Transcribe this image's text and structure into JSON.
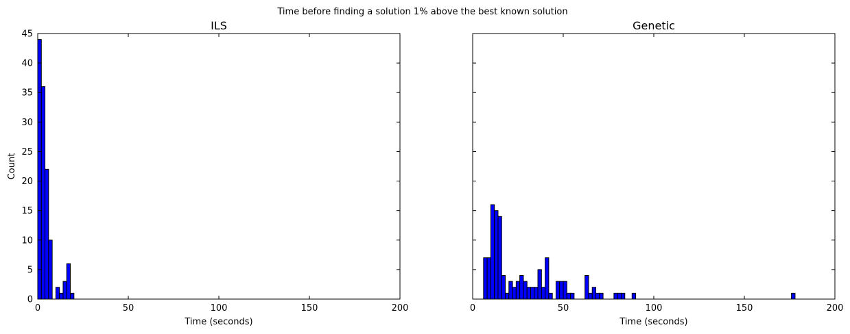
{
  "figure": {
    "suptitle": "Time before finding a solution 1% above the best known solution"
  },
  "chart_data": [
    {
      "type": "bar",
      "title": "ILS",
      "xlabel": "Time (seconds)",
      "ylabel": "Count",
      "xlim": [
        0,
        200
      ],
      "ylim": [
        0,
        45
      ],
      "xticks": [
        0,
        50,
        100,
        150,
        200
      ],
      "yticks": [
        0,
        5,
        10,
        15,
        20,
        25,
        30,
        35,
        40,
        45
      ],
      "bin_width": 2,
      "bin_start": 0,
      "values": [
        44,
        36,
        22,
        10,
        0,
        2,
        1,
        3,
        6,
        1
      ],
      "color": "#0000ff",
      "grid": false
    },
    {
      "type": "bar",
      "title": "Genetic",
      "xlabel": "Time (seconds)",
      "ylabel": "",
      "xlim": [
        0,
        200
      ],
      "ylim": [
        0,
        45
      ],
      "xticks": [
        0,
        50,
        100,
        150,
        200
      ],
      "yticks": [
        0,
        5,
        10,
        15,
        20,
        25,
        30,
        35,
        40,
        45
      ],
      "bin_width": 2,
      "bin_start": 6,
      "values": [
        7,
        7,
        16,
        15,
        14,
        4,
        1,
        3,
        2,
        3,
        4,
        3,
        2,
        2,
        2,
        5,
        2,
        7,
        1,
        0,
        3,
        3,
        3,
        1,
        1,
        0,
        0,
        0,
        4,
        1,
        2,
        1,
        1,
        0,
        0,
        0,
        1,
        1,
        1,
        0,
        0,
        1,
        0,
        0,
        0,
        0,
        0,
        0,
        0,
        0,
        0,
        0,
        0,
        0,
        0,
        0,
        0,
        0,
        0,
        0,
        0,
        0,
        0,
        0,
        0,
        0,
        0,
        0,
        0,
        0,
        0,
        0,
        0,
        0,
        0,
        0,
        0,
        0,
        0,
        0,
        0,
        0,
        0,
        0,
        0,
        1
      ],
      "color": "#0000ff",
      "grid": false
    }
  ]
}
